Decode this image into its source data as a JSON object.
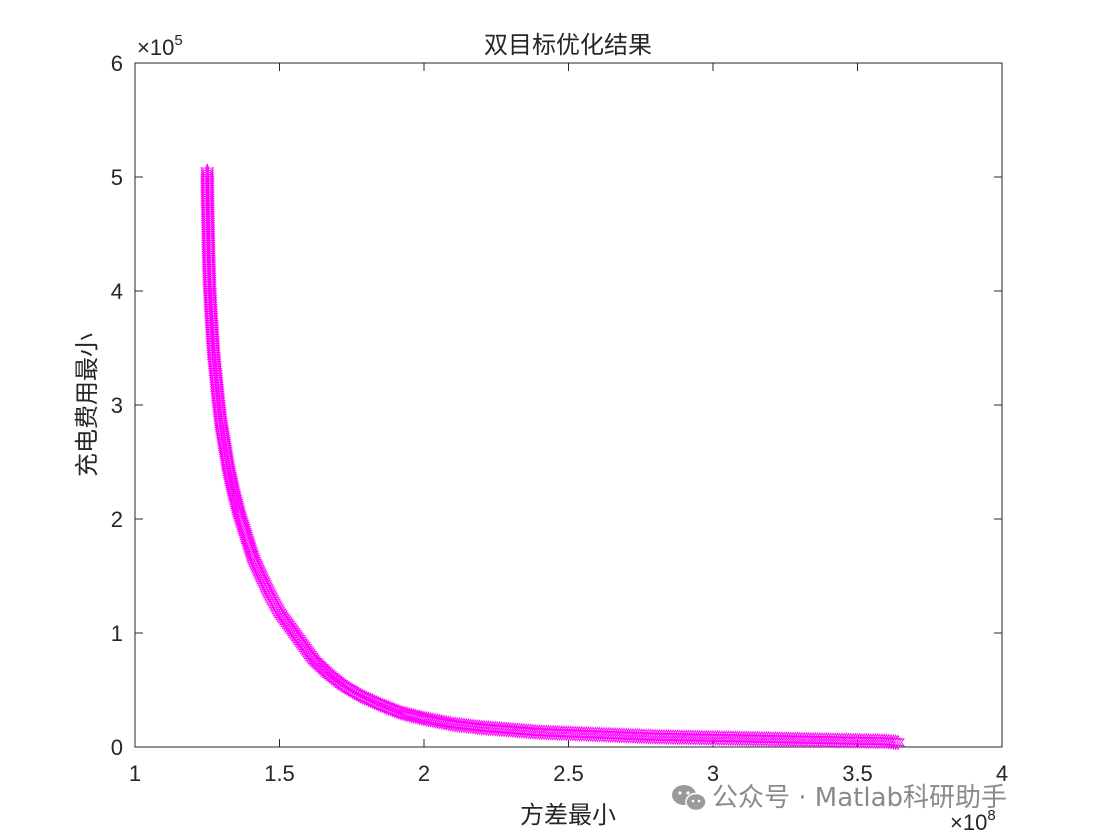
{
  "chart_data": {
    "type": "scatter",
    "title": "双目标优化结果",
    "xlabel": "方差最小",
    "ylabel": "充电费用最小",
    "xlim": [
      1,
      4
    ],
    "ylim": [
      0,
      6
    ],
    "x_ticks": [
      "1",
      "1.5",
      "2",
      "2.5",
      "3",
      "3.5",
      "4"
    ],
    "y_ticks": [
      "0",
      "1",
      "2",
      "3",
      "4",
      "5",
      "6"
    ],
    "x_exponent": "×10",
    "x_exponent_power": "8",
    "y_exponent": "×10",
    "y_exponent_power": "5",
    "marker": "hexagram",
    "marker_color": "#ff00ff",
    "grid": false,
    "x_scale": 100000000,
    "y_scale": 100000,
    "series": [
      {
        "x": [
          1.25,
          1.251,
          1.253,
          1.255,
          1.258,
          1.262,
          1.267,
          1.272,
          1.28,
          1.288,
          1.297,
          1.31,
          1.323,
          1.34,
          1.36,
          1.385,
          1.41,
          1.44,
          1.47,
          1.5,
          1.54,
          1.58,
          1.62,
          1.67,
          1.72,
          1.78,
          1.85,
          1.92,
          2.0,
          2.1,
          2.2,
          2.3,
          2.4,
          2.5,
          2.6,
          2.7,
          2.8,
          2.9,
          3.0,
          3.1,
          3.2,
          3.3,
          3.4,
          3.5,
          3.6,
          3.64
        ],
        "y": [
          5.05,
          4.8,
          4.55,
          4.3,
          4.05,
          3.85,
          3.65,
          3.45,
          3.25,
          3.05,
          2.85,
          2.65,
          2.45,
          2.25,
          2.05,
          1.85,
          1.65,
          1.48,
          1.32,
          1.18,
          1.04,
          0.9,
          0.76,
          0.64,
          0.54,
          0.45,
          0.37,
          0.3,
          0.25,
          0.2,
          0.17,
          0.15,
          0.13,
          0.12,
          0.11,
          0.1,
          0.09,
          0.085,
          0.08,
          0.075,
          0.07,
          0.065,
          0.06,
          0.055,
          0.05,
          0.04
        ]
      }
    ]
  },
  "watermark": {
    "text": "公众号 · Matlab科研助手",
    "icon": "wechat-icon"
  }
}
